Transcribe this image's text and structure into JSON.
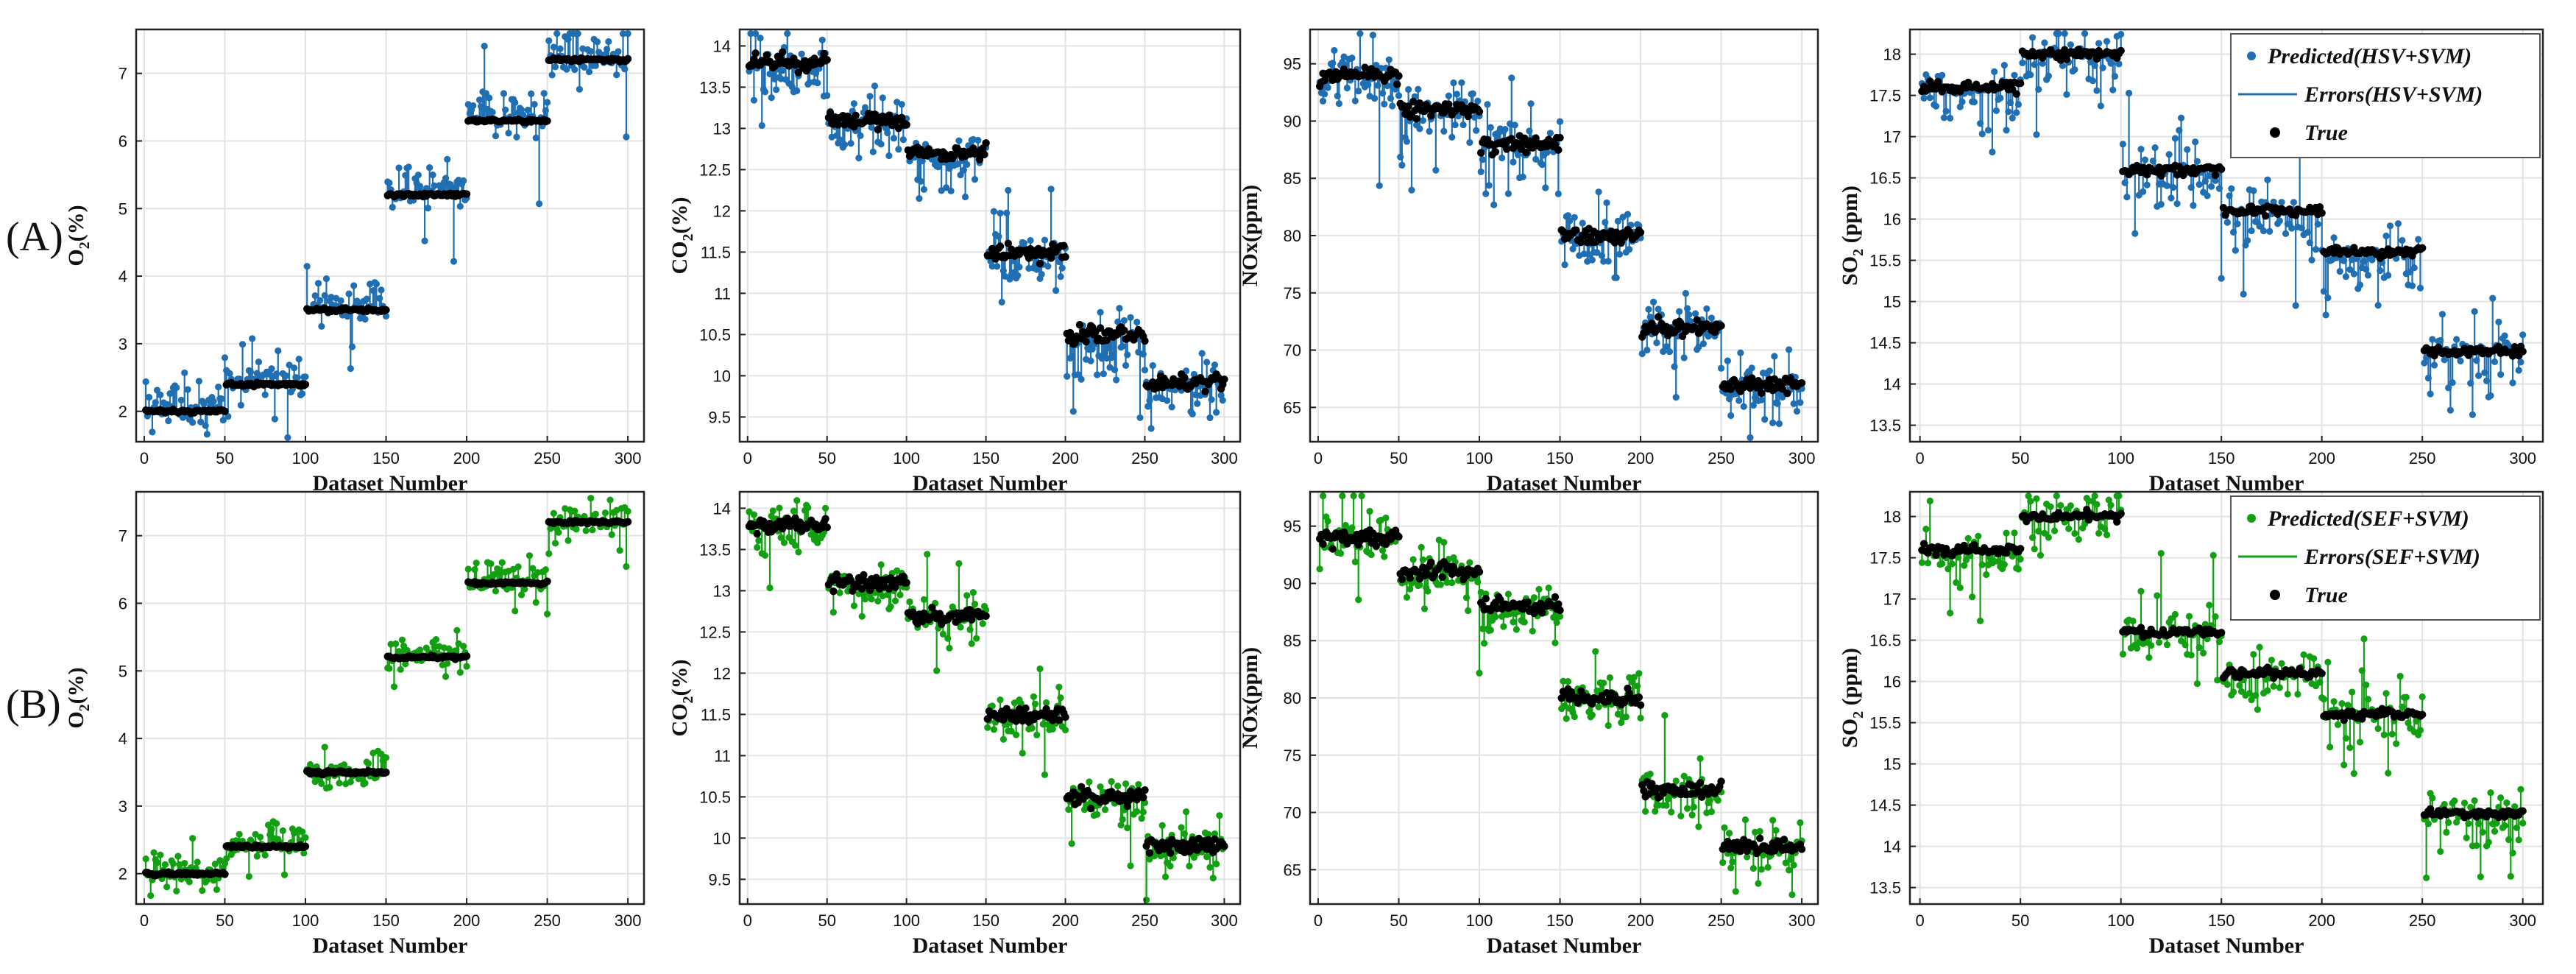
{
  "figure": {
    "row_labels": [
      "(A)",
      "(B)"
    ],
    "colors": {
      "hsv": "#1f6fb2",
      "sef": "#12a012",
      "true": "#000000",
      "grid": "#e3e3e3",
      "axis": "#222222"
    }
  },
  "legends": {
    "A": [
      "Predicted(HSV+SVM)",
      "Errors(HSV+SVM)",
      "True"
    ],
    "B": [
      "Predicted(SEF+SVM)",
      "Errors(SEF+SVM)",
      "True"
    ]
  },
  "chart_data": [
    {
      "type": "scatter",
      "id": "A-O2",
      "row": "A",
      "variable": "O2",
      "method": "HSV+SVM",
      "xlabel": "Dataset Number",
      "ylabel": "O2(%)",
      "ylabel_main": "O",
      "ylabel_sub": "2",
      "ylabel_tail": "(%)",
      "xlim": [
        -5,
        310
      ],
      "ylim": [
        1.55,
        7.65
      ],
      "xticks": [
        0,
        50,
        100,
        150,
        200,
        250,
        300
      ],
      "yticks": [
        2,
        3,
        4,
        5,
        6,
        7
      ],
      "true_levels": [
        2.0,
        2.4,
        3.5,
        5.2,
        6.3,
        7.2
      ],
      "true_jitter": 0.02,
      "pred_noise": 0.3,
      "pred_bias": 0.1,
      "legend": false
    },
    {
      "type": "scatter",
      "id": "A-CO2",
      "row": "A",
      "variable": "CO2",
      "method": "HSV+SVM",
      "xlabel": "Dataset Number",
      "ylabel": "CO2(%)",
      "ylabel_main": "CO",
      "ylabel_sub": "2",
      "ylabel_tail": "(%)",
      "xlim": [
        -5,
        310
      ],
      "ylim": [
        9.2,
        14.2
      ],
      "xticks": [
        0,
        50,
        100,
        150,
        200,
        250,
        300
      ],
      "yticks": [
        9.5,
        10,
        10.5,
        11,
        11.5,
        12,
        12.5,
        13,
        13.5,
        14
      ],
      "true_levels": [
        13.8,
        13.1,
        12.7,
        11.5,
        10.5,
        9.9
      ],
      "true_jitter": 0.08,
      "pred_noise": 0.3,
      "pred_bias": -0.1,
      "legend": false
    },
    {
      "type": "scatter",
      "id": "A-NOx",
      "row": "A",
      "variable": "NOx",
      "method": "HSV+SVM",
      "xlabel": "Dataset Number",
      "ylabel": "NOx(ppm)",
      "ylabel_main": "NOx(ppm)",
      "ylabel_sub": "",
      "ylabel_tail": "",
      "xlim": [
        -5,
        310
      ],
      "ylim": [
        62,
        98
      ],
      "xticks": [
        0,
        50,
        100,
        150,
        200,
        250,
        300
      ],
      "yticks": [
        65,
        70,
        75,
        80,
        85,
        90,
        95
      ],
      "true_levels": [
        94,
        91,
        88,
        80,
        72,
        67
      ],
      "true_jitter": 0.6,
      "pred_noise": 2.3,
      "pred_bias": -0.3,
      "legend": false
    },
    {
      "type": "scatter",
      "id": "A-SO2",
      "row": "A",
      "variable": "SO2",
      "method": "HSV+SVM",
      "xlabel": "Dataset Number",
      "ylabel": "SO2 (ppm)",
      "ylabel_main": "SO",
      "ylabel_sub": "2",
      "ylabel_tail": " (ppm)",
      "xlim": [
        -5,
        310
      ],
      "ylim": [
        13.3,
        18.3
      ],
      "xticks": [
        0,
        50,
        100,
        150,
        200,
        250,
        300
      ],
      "yticks": [
        13.5,
        14,
        14.5,
        15,
        15.5,
        16,
        16.5,
        17,
        17.5,
        18
      ],
      "true_levels": [
        17.6,
        18.0,
        16.6,
        16.1,
        15.6,
        14.4
      ],
      "true_jitter": 0.05,
      "pred_noise": 0.35,
      "pred_bias": -0.1,
      "legend": true
    },
    {
      "type": "scatter",
      "id": "B-O2",
      "row": "B",
      "variable": "O2",
      "method": "SEF+SVM",
      "xlabel": "Dataset Number",
      "ylabel": "O2(%)",
      "ylabel_main": "O",
      "ylabel_sub": "2",
      "ylabel_tail": "(%)",
      "xlim": [
        -5,
        310
      ],
      "ylim": [
        1.55,
        7.65
      ],
      "xticks": [
        0,
        50,
        100,
        150,
        200,
        250,
        300
      ],
      "yticks": [
        2,
        3,
        4,
        5,
        6,
        7
      ],
      "true_levels": [
        2.0,
        2.4,
        3.5,
        5.2,
        6.3,
        7.2
      ],
      "true_jitter": 0.02,
      "pred_noise": 0.22,
      "pred_bias": 0.05,
      "legend": false
    },
    {
      "type": "scatter",
      "id": "B-CO2",
      "row": "B",
      "variable": "CO2",
      "method": "SEF+SVM",
      "xlabel": "Dataset Number",
      "ylabel": "CO2(%)",
      "ylabel_main": "CO",
      "ylabel_sub": "2",
      "ylabel_tail": "(%)",
      "xlim": [
        -5,
        310
      ],
      "ylim": [
        9.2,
        14.2
      ],
      "xticks": [
        0,
        50,
        100,
        150,
        200,
        250,
        300
      ],
      "yticks": [
        9.5,
        10,
        10.5,
        11,
        11.5,
        12,
        12.5,
        13,
        13.5,
        14
      ],
      "true_levels": [
        13.8,
        13.1,
        12.7,
        11.5,
        10.5,
        9.9
      ],
      "true_jitter": 0.08,
      "pred_noise": 0.22,
      "pred_bias": -0.05,
      "legend": false
    },
    {
      "type": "scatter",
      "id": "B-NOx",
      "row": "B",
      "variable": "NOx",
      "method": "SEF+SVM",
      "xlabel": "Dataset Number",
      "ylabel": "NOx(ppm)",
      "ylabel_main": "NOx(ppm)",
      "ylabel_sub": "",
      "ylabel_tail": "",
      "xlim": [
        -5,
        310
      ],
      "ylim": [
        62,
        98
      ],
      "xticks": [
        0,
        50,
        100,
        150,
        200,
        250,
        300
      ],
      "yticks": [
        65,
        70,
        75,
        80,
        85,
        90,
        95
      ],
      "true_levels": [
        94,
        91,
        88,
        80,
        72,
        67
      ],
      "true_jitter": 0.6,
      "pred_noise": 1.7,
      "pred_bias": -0.2,
      "legend": false
    },
    {
      "type": "scatter",
      "id": "B-SO2",
      "row": "B",
      "variable": "SO2",
      "method": "SEF+SVM",
      "xlabel": "Dataset Number",
      "ylabel": "SO2 (ppm)",
      "ylabel_main": "SO",
      "ylabel_sub": "2",
      "ylabel_tail": " (ppm)",
      "xlim": [
        -5,
        310
      ],
      "ylim": [
        13.3,
        18.3
      ],
      "xticks": [
        0,
        50,
        100,
        150,
        200,
        250,
        300
      ],
      "yticks": [
        13.5,
        14,
        14.5,
        15,
        15.5,
        16,
        16.5,
        17,
        17.5,
        18
      ],
      "true_levels": [
        17.6,
        18.0,
        16.6,
        16.1,
        15.6,
        14.4
      ],
      "true_jitter": 0.05,
      "pred_noise": 0.28,
      "pred_bias": -0.05,
      "legend": true
    }
  ]
}
